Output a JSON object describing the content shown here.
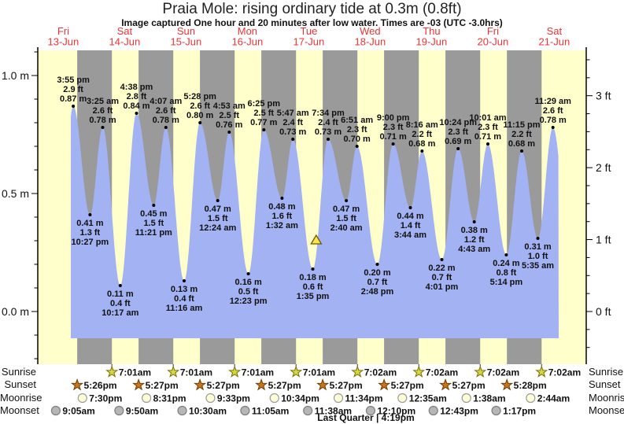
{
  "header": {
    "title": "Praia Mole: rising  ordinary tide at 0.3m (0.8ft)",
    "subtitle": "Image captured One hour and 20 minutes after low water. Times are -03 (UTC -3.0hrs)"
  },
  "chart_data": {
    "type": "area",
    "title": "Praia Mole: rising  ordinary tide at 0.3m (0.8ft)",
    "subtitle": "Image captured One hour and 20 minutes after low water. Times are -03 (UTC -3.0hrs)",
    "x_axis": {
      "days": [
        {
          "name": "Fri",
          "date": "13-Jun"
        },
        {
          "name": "Sat",
          "date": "14-Jun"
        },
        {
          "name": "Sun",
          "date": "15-Jun"
        },
        {
          "name": "Mon",
          "date": "16-Jun"
        },
        {
          "name": "Tue",
          "date": "17-Jun"
        },
        {
          "name": "Wed",
          "date": "18-Jun"
        },
        {
          "name": "Thu",
          "date": "19-Jun"
        },
        {
          "name": "Fri",
          "date": "20-Jun"
        },
        {
          "name": "Sat",
          "date": "21-Jun"
        }
      ]
    },
    "y_axis": {
      "left_unit": "m",
      "right_unit": "ft",
      "left_major_ticks": {
        "0": "0.0 m",
        "5": "0.5 m",
        "10": "1.0 m"
      },
      "right_major_ticks": [
        "0 ft",
        "1 ft",
        "2 ft",
        "3 ft"
      ],
      "left_range_m": [
        -0.2,
        1.1
      ],
      "grid": false
    },
    "high_tides": [
      {
        "t": 0.6632,
        "m": 0.87,
        "time": "3:55 pm",
        "ft_label": "2.9 ft",
        "m_label": "0.87 m"
      },
      {
        "t": 1.1424,
        "m": 0.78,
        "time": "3:25 am",
        "ft_label": "2.6 ft",
        "m_label": "0.78 m"
      },
      {
        "t": 1.6931,
        "m": 0.84,
        "time": "4:38 pm",
        "ft_label": "2.8 ft",
        "m_label": "0.84 m"
      },
      {
        "t": 2.1715,
        "m": 0.78,
        "time": "4:07 am",
        "ft_label": "2.6 ft",
        "m_label": "0.78 m"
      },
      {
        "t": 2.7278,
        "m": 0.8,
        "time": "5:28 pm",
        "ft_label": "2.6 ft",
        "m_label": "0.80 m"
      },
      {
        "t": 3.2035,
        "m": 0.76,
        "time": "4:53 am",
        "ft_label": "2.5 ft",
        "m_label": "0.76 m"
      },
      {
        "t": 3.7674,
        "m": 0.77,
        "time": "6:25 pm",
        "ft_label": "2.5 ft",
        "m_label": "0.77 m"
      },
      {
        "t": 4.241,
        "m": 0.73,
        "time": "5:47 am",
        "ft_label": "2.4 ft",
        "m_label": "0.73 m"
      },
      {
        "t": 4.8153,
        "m": 0.73,
        "time": "7:34 pm",
        "ft_label": "2.4 ft",
        "m_label": "0.73 m"
      },
      {
        "t": 5.2854,
        "m": 0.7,
        "time": "6:51 am",
        "ft_label": "2.3 ft",
        "m_label": "0.70 m"
      },
      {
        "t": 5.875,
        "m": 0.71,
        "time": "9:00 pm",
        "ft_label": "2.3 ft",
        "m_label": "0.71 m"
      },
      {
        "t": 6.3444,
        "m": 0.68,
        "time": "8:16 am",
        "ft_label": "2.2 ft",
        "m_label": "0.68 m"
      },
      {
        "t": 6.9333,
        "m": 0.69,
        "time": "10:24 pm",
        "ft_label": "2.3 ft",
        "m_label": "0.69 m"
      },
      {
        "t": 7.4174,
        "m": 0.71,
        "time": "10:01 am",
        "ft_label": "2.3 ft",
        "m_label": "0.71 m"
      },
      {
        "t": 7.9688,
        "m": 0.68,
        "time": "11:15 pm",
        "ft_label": "2.2 ft",
        "m_label": "0.68 m"
      },
      {
        "t": 8.4785,
        "m": 0.78,
        "time": "11:29 am",
        "ft_label": "2.6 ft",
        "m_label": "0.78 m"
      }
    ],
    "low_tides": [
      {
        "t": 0.9354,
        "m": 0.41,
        "time": "10:27 pm",
        "ft_label": "1.3 ft",
        "m_label": "0.41 m"
      },
      {
        "t": 1.4285,
        "m": 0.11,
        "time": "10:17 am",
        "ft_label": "0.4 ft",
        "m_label": "0.11 m"
      },
      {
        "t": 1.9729,
        "m": 0.45,
        "time": "11:21 pm",
        "ft_label": "1.5 ft",
        "m_label": "0.45 m"
      },
      {
        "t": 2.4694,
        "m": 0.13,
        "time": "11:16 am",
        "ft_label": "0.4 ft",
        "m_label": "0.13 m"
      },
      {
        "t": 3.0167,
        "m": 0.47,
        "time": "12:24 am",
        "ft_label": "1.5 ft",
        "m_label": "0.47 m"
      },
      {
        "t": 3.516,
        "m": 0.16,
        "time": "12:23 pm",
        "ft_label": "0.5 ft",
        "m_label": "0.16 m"
      },
      {
        "t": 4.0639,
        "m": 0.48,
        "time": "1:32 am",
        "ft_label": "1.6 ft",
        "m_label": "0.48 m"
      },
      {
        "t": 4.566,
        "m": 0.18,
        "time": "1:35 pm",
        "ft_label": "0.6 ft",
        "m_label": "0.18 m"
      },
      {
        "t": 5.1111,
        "m": 0.47,
        "time": "2:40 am",
        "ft_label": "1.5 ft",
        "m_label": "0.47 m"
      },
      {
        "t": 5.6167,
        "m": 0.2,
        "time": "2:48 pm",
        "ft_label": "0.7 ft",
        "m_label": "0.20 m"
      },
      {
        "t": 6.1556,
        "m": 0.44,
        "time": "3:44 am",
        "ft_label": "1.4 ft",
        "m_label": "0.44 m"
      },
      {
        "t": 6.6674,
        "m": 0.22,
        "time": "4:01 pm",
        "ft_label": "0.7 ft",
        "m_label": "0.22 m"
      },
      {
        "t": 7.1965,
        "m": 0.38,
        "time": "4:43 am",
        "ft_label": "1.2 ft",
        "m_label": "0.38 m"
      },
      {
        "t": 7.7181,
        "m": 0.24,
        "time": "5:14 pm",
        "ft_label": "0.8 ft",
        "m_label": "0.24 m"
      },
      {
        "t": 8.2326,
        "m": 0.31,
        "time": "5:35 am",
        "ft_label": "1.0 ft",
        "m_label": "0.31 m"
      }
    ],
    "current_marker": {
      "t": 4.6215,
      "m": 0.3
    },
    "moon_phase_label": "Last Quarter | 4:19pm"
  },
  "astro": {
    "rows": [
      {
        "key": "sunrise",
        "label": "Sunrise",
        "icon": "sunrise-star",
        "events": [
          [
            1.2924,
            "7:01am"
          ],
          [
            2.2924,
            "7:01am"
          ],
          [
            3.2924,
            "7:01am"
          ],
          [
            4.2924,
            "7:01am"
          ],
          [
            5.2931,
            "7:02am"
          ],
          [
            6.2931,
            "7:02am"
          ],
          [
            7.2931,
            "7:02am"
          ],
          [
            8.2931,
            "7:02am"
          ]
        ]
      },
      {
        "key": "sunset",
        "label": "Sunset",
        "icon": "sunset-star",
        "events": [
          [
            0.7264,
            "5:26pm"
          ],
          [
            1.7271,
            "5:27pm"
          ],
          [
            2.7271,
            "5:27pm"
          ],
          [
            3.7271,
            "5:27pm"
          ],
          [
            4.7271,
            "5:27pm"
          ],
          [
            5.7271,
            "5:27pm"
          ],
          [
            6.7271,
            "5:27pm"
          ],
          [
            7.7278,
            "5:28pm"
          ]
        ]
      },
      {
        "key": "moonrise",
        "label": "Moonrise",
        "icon": "moonrise-circle",
        "events": [
          [
            0.8125,
            "7:30pm"
          ],
          [
            1.8549,
            "8:31pm"
          ],
          [
            2.8979,
            "9:33pm"
          ],
          [
            3.9403,
            "10:34pm"
          ],
          [
            4.9819,
            "11:34pm"
          ],
          [
            6.0243,
            "12:35am"
          ],
          [
            7.0681,
            "1:38am"
          ],
          [
            8.1139,
            "2:44am"
          ]
        ]
      },
      {
        "key": "moonset",
        "label": "Moonset",
        "icon": "moonset-circle",
        "events": [
          [
            0.3785,
            "9:05am"
          ],
          [
            1.4097,
            "9:50am"
          ],
          [
            2.4375,
            "10:30am"
          ],
          [
            3.4618,
            "11:05am"
          ],
          [
            4.4847,
            "11:38am"
          ],
          [
            5.5069,
            "12:10pm"
          ],
          [
            6.5299,
            "12:43pm"
          ],
          [
            7.5535,
            "1:17pm"
          ]
        ]
      }
    ]
  },
  "colors": {
    "day_band": "#ffffcc",
    "night_band": "#9a9a9a",
    "tide_fill": "#a2b2f2",
    "day_label": "#ee3333",
    "axis": "#000000",
    "annotation": "#111111",
    "sunrise_star_fill": "#d4d83e",
    "sunrise_star_stroke": "#77700a",
    "sunset_star_fill": "#c8761c",
    "sunset_star_stroke": "#6f3c04",
    "moonrise_fill": "#ffffd8",
    "moonrise_stroke": "#9a9a9a",
    "moonset_fill": "#b6b6b6",
    "moonset_stroke": "#7e7e7e",
    "marker_fill": "#ffe34d",
    "marker_stroke": "#6b5900"
  }
}
